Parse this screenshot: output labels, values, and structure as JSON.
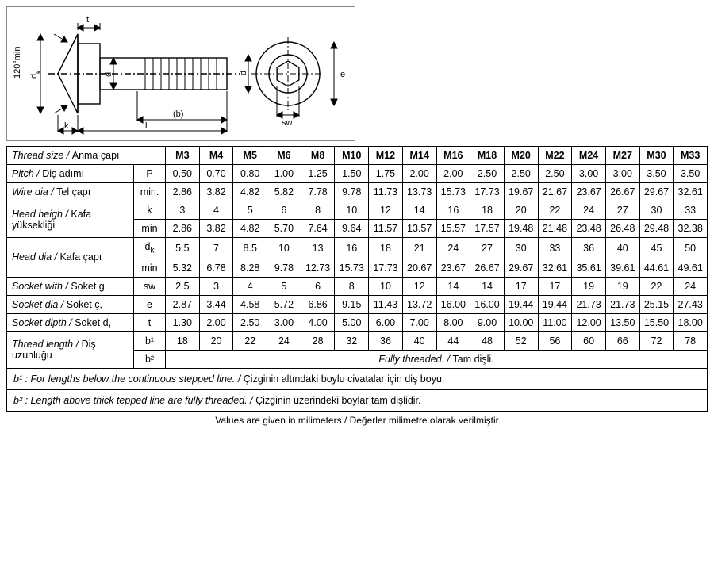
{
  "header": {
    "label_en": "Thread size",
    "label_tr": "Anma çapı",
    "sizes": [
      "M3",
      "M4",
      "M5",
      "M6",
      "M8",
      "M10",
      "M12",
      "M14",
      "M16",
      "M18",
      "M20",
      "M22",
      "M24",
      "M27",
      "M30",
      "M33"
    ]
  },
  "rows": [
    {
      "label_en": "Pitch",
      "label_tr": "Diş adımı",
      "sym": "P",
      "vals": [
        "0.50",
        "0.70",
        "0.80",
        "1.00",
        "1.25",
        "1.50",
        "1.75",
        "2.00",
        "2.00",
        "2.50",
        "2.50",
        "2.50",
        "3.00",
        "3.00",
        "3.50",
        "3.50"
      ]
    },
    {
      "label_en": "Wire dia",
      "label_tr": "Tel çapı",
      "sym": "min.",
      "vals": [
        "2.86",
        "3.82",
        "4.82",
        "5.82",
        "7.78",
        "9.78",
        "11.73",
        "13.73",
        "15.73",
        "17.73",
        "19.67",
        "21.67",
        "23.67",
        "26.67",
        "29.67",
        "32.61"
      ]
    },
    {
      "label_en": "Head heigh",
      "label_tr": "Kafa yüksekliği",
      "grp": 2,
      "sym": "k",
      "vals": [
        "3",
        "4",
        "5",
        "6",
        "8",
        "10",
        "12",
        "14",
        "16",
        "18",
        "20",
        "22",
        "24",
        "27",
        "30",
        "33"
      ]
    },
    {
      "sym": "min",
      "vals": [
        "2.86",
        "3.82",
        "4.82",
        "5.70",
        "7.64",
        "9.64",
        "11.57",
        "13.57",
        "15.57",
        "17.57",
        "19.48",
        "21.48",
        "23.48",
        "26.48",
        "29.48",
        "32.38"
      ]
    },
    {
      "label_en": "Head dia",
      "label_tr": "Kafa çapı",
      "grp": 2,
      "sym": "d_k",
      "vals": [
        "5.5",
        "7",
        "8.5",
        "10",
        "13",
        "16",
        "18",
        "21",
        "24",
        "27",
        "30",
        "33",
        "36",
        "40",
        "45",
        "50"
      ]
    },
    {
      "sym": "min",
      "vals": [
        "5.32",
        "6.78",
        "8.28",
        "9.78",
        "12.73",
        "15.73",
        "17.73",
        "20.67",
        "23.67",
        "26.67",
        "29.67",
        "32.61",
        "35.61",
        "39.61",
        "44.61",
        "49.61"
      ]
    },
    {
      "label_en": "Socket with",
      "label_tr": "Soket g,",
      "sym": "sw",
      "vals": [
        "2.5",
        "3",
        "4",
        "5",
        "6",
        "8",
        "10",
        "12",
        "14",
        "14",
        "17",
        "17",
        "19",
        "19",
        "22",
        "24"
      ]
    },
    {
      "label_en": "Socket dia",
      "label_tr": "Soket ç,",
      "sym": "e",
      "vals": [
        "2.87",
        "3.44",
        "4.58",
        "5.72",
        "6.86",
        "9.15",
        "11.43",
        "13.72",
        "16.00",
        "16.00",
        "19.44",
        "19.44",
        "21.73",
        "21.73",
        "25.15",
        "27.43"
      ]
    },
    {
      "label_en": "Socket dipth",
      "label_tr": "Soket d,",
      "sym": "t",
      "vals": [
        "1.30",
        "2.00",
        "2.50",
        "3.00",
        "4.00",
        "5.00",
        "6.00",
        "7.00",
        "8.00",
        "9.00",
        "10.00",
        "11.00",
        "12.00",
        "13.50",
        "15.50",
        "18.00"
      ]
    },
    {
      "label_en": "Thread length",
      "label_tr": "Diş uzunluğu",
      "grp": 2,
      "sym": "b¹",
      "vals": [
        "18",
        "20",
        "22",
        "24",
        "28",
        "32",
        "36",
        "40",
        "44",
        "48",
        "52",
        "56",
        "60",
        "66",
        "72",
        "78"
      ]
    },
    {
      "sym": "b²",
      "fully": true
    }
  ],
  "fully": {
    "en": "Fully threaded.",
    "tr": "Tam dişli."
  },
  "notes": [
    {
      "key": "b¹",
      "en": "For lengths below the continuous stepped line.",
      "tr": "Çizginin altındaki boylu civatalar için diş  boyu."
    },
    {
      "key": "b²",
      "en": "Length above thick tepped  line are fully threaded.",
      "tr": "Çizginin üzerindeki boylar tam dişlidir."
    }
  ],
  "footer": "Values are given in milimeters / Değerler milimetre olarak verilmiştir",
  "diagram": {
    "labels": {
      "angle": "120°min",
      "dk": "d_k",
      "t": "t",
      "k": "k",
      "l": "l",
      "b": "(b)",
      "d": "d",
      "sw": "sw",
      "e": "e"
    }
  }
}
